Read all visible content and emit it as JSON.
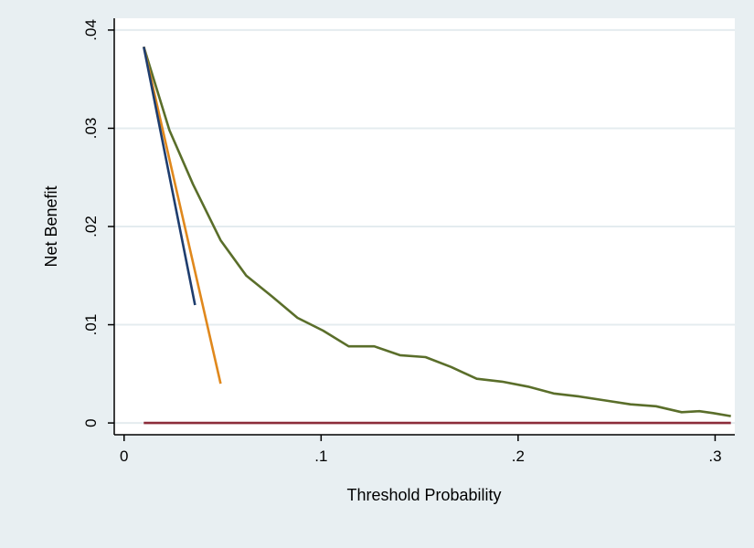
{
  "chart_data": {
    "type": "line",
    "title": "",
    "xlabel": "Threshold Probability",
    "ylabel": "Net Benefit",
    "xlim": [
      -0.005,
      0.31
    ],
    "ylim": [
      -0.0012,
      0.0412
    ],
    "x_ticks": [
      0,
      0.1,
      0.2,
      0.3
    ],
    "x_tick_labels": [
      "0",
      ".1",
      ".2",
      ".3"
    ],
    "y_ticks": [
      0,
      0.01,
      0.02,
      0.03,
      0.04
    ],
    "y_tick_labels": [
      "0",
      ".01",
      ".02",
      ".03",
      ".04"
    ],
    "grid": true,
    "legend": "none",
    "series": [
      {
        "color": "#5a6e2a",
        "x": [
          0.01,
          0.023,
          0.035,
          0.049,
          0.062,
          0.075,
          0.088,
          0.101,
          0.114,
          0.127,
          0.14,
          0.153,
          0.166,
          0.179,
          0.192,
          0.205,
          0.218,
          0.231,
          0.244,
          0.257,
          0.27,
          0.283,
          0.292,
          0.299,
          0.308
        ],
        "y": [
          0.0383,
          0.0298,
          0.0243,
          0.0186,
          0.015,
          0.0129,
          0.0107,
          0.0094,
          0.0078,
          0.0078,
          0.0069,
          0.0067,
          0.0057,
          0.0045,
          0.0042,
          0.0037,
          0.003,
          0.0027,
          0.0023,
          0.0019,
          0.0017,
          0.0011,
          0.0012,
          0.001,
          0.0007
        ]
      },
      {
        "color": "#e0881c",
        "x": [
          0.01,
          0.049
        ],
        "y": [
          0.0383,
          0.004
        ]
      },
      {
        "color": "#1e3d6e",
        "x": [
          0.01,
          0.036
        ],
        "y": [
          0.0383,
          0.012
        ]
      },
      {
        "color": "#8c2c3a",
        "x": [
          0.01,
          0.308
        ],
        "y": [
          0,
          0
        ]
      }
    ]
  }
}
